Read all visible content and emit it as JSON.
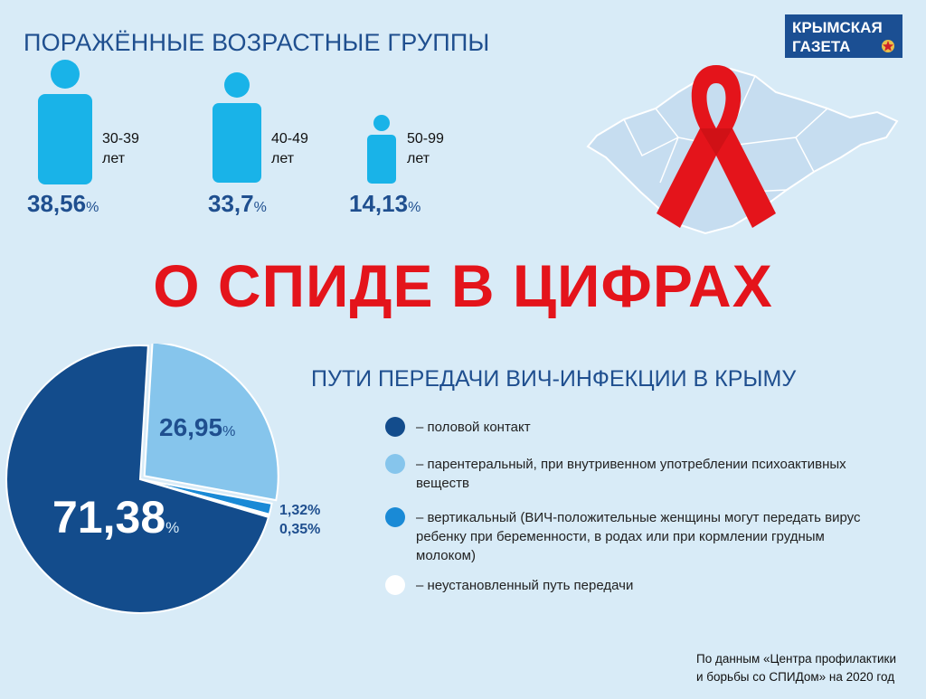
{
  "header": {
    "age_title": "ПОРАЖЁННЫЕ ВОЗРАСТНЫЕ ГРУППЫ",
    "logo_line1": "КРЫМСКАЯ",
    "logo_line2": "ГАЗЕТА"
  },
  "age_groups": [
    {
      "label_line1": "30-39",
      "label_line2": "лет",
      "value": "38,56",
      "unit": "%"
    },
    {
      "label_line1": "40-49",
      "label_line2": "лет",
      "value": "33,7",
      "unit": "%"
    },
    {
      "label_line1": "50-99",
      "label_line2": "лет",
      "value": "14,13",
      "unit": "%"
    }
  ],
  "headline": "О СПИДЕ В ЦИФРАХ",
  "routes_title": "ПУТИ ПЕРЕДАЧИ ВИЧ-ИНФЕКЦИИ В КРЫМУ",
  "legend": [
    {
      "text": "– половой контакт",
      "color": "#134c8c"
    },
    {
      "text": "– парентеральный, при внутривенном употреблении психоактивных веществ",
      "color": "#86c5ec"
    },
    {
      "text": "– вертикальный (ВИЧ-положительные женщины могут передать вирус ребенку при беременности, в родах или при кормлении грудным молоком)",
      "color": "#1a8ad6"
    },
    {
      "text": "– неустановленный путь передачи",
      "color": "#ffffff"
    }
  ],
  "chart_data": {
    "type": "pie",
    "title": "ПУТИ ПЕРЕДАЧИ ВИЧ-ИНФЕКЦИИ В КРЫМУ",
    "slices": [
      {
        "label": "половой контакт",
        "value": 71.38,
        "display": "71,38",
        "color": "#134c8c"
      },
      {
        "label": "парентеральный",
        "value": 26.95,
        "display": "26,95",
        "color": "#86c5ec"
      },
      {
        "label": "вертикальный",
        "value": 1.32,
        "display": "1,32%",
        "color": "#1a8ad6"
      },
      {
        "label": "неустановленный",
        "value": 0.35,
        "display": "0,35%",
        "color": "#ffffff"
      }
    ]
  },
  "source": {
    "line1": "По данным «Центра профилактики",
    "line2": "и борьбы со СПИДом» на 2020 год"
  },
  "colors": {
    "accent": "#e4141b",
    "person": "#19b3e8",
    "ribbon": "#e4141b",
    "map": "#c6ddf0"
  },
  "icons": [
    "person-icon",
    "aids-ribbon-icon",
    "crimea-map-icon",
    "star-emblem-icon"
  ]
}
